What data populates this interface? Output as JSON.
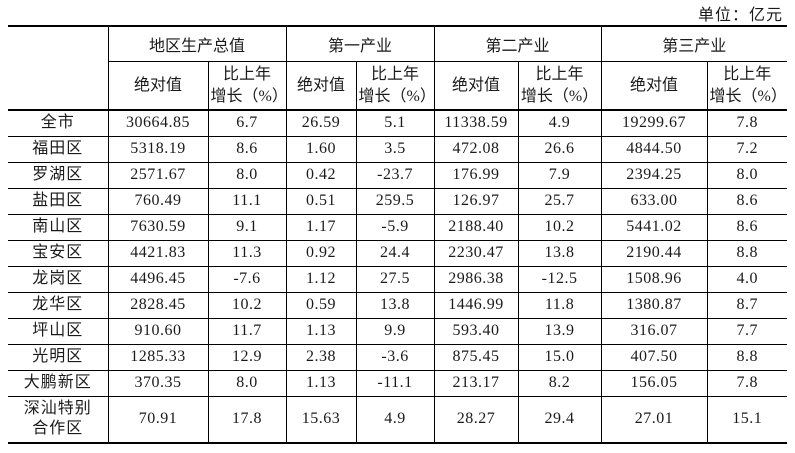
{
  "unit_label": "单位：亿元",
  "table": {
    "col_groups": [
      {
        "label": "地区生产总值"
      },
      {
        "label": "第一产业"
      },
      {
        "label": "第二产业"
      },
      {
        "label": "第三产业"
      }
    ],
    "sub_headers": {
      "abs": "绝对值",
      "growth": "比上年\n增长（%）"
    },
    "rows": [
      {
        "region": "全市",
        "values": [
          "30664.85",
          "6.7",
          "26.59",
          "5.1",
          "11338.59",
          "4.9",
          "19299.67",
          "7.8"
        ]
      },
      {
        "region": "福田区",
        "values": [
          "5318.19",
          "8.6",
          "1.60",
          "3.5",
          "472.08",
          "26.6",
          "4844.50",
          "7.2"
        ]
      },
      {
        "region": "罗湖区",
        "values": [
          "2571.67",
          "8.0",
          "0.42",
          "-23.7",
          "176.99",
          "7.9",
          "2394.25",
          "8.0"
        ]
      },
      {
        "region": "盐田区",
        "values": [
          "760.49",
          "11.1",
          "0.51",
          "259.5",
          "126.97",
          "25.7",
          "633.00",
          "8.6"
        ]
      },
      {
        "region": "南山区",
        "values": [
          "7630.59",
          "9.1",
          "1.17",
          "-5.9",
          "2188.40",
          "10.2",
          "5441.02",
          "8.6"
        ]
      },
      {
        "region": "宝安区",
        "values": [
          "4421.83",
          "11.3",
          "0.92",
          "24.4",
          "2230.47",
          "13.8",
          "2190.44",
          "8.8"
        ]
      },
      {
        "region": "龙岗区",
        "values": [
          "4496.45",
          "-7.6",
          "1.12",
          "27.5",
          "2986.38",
          "-12.5",
          "1508.96",
          "4.0"
        ]
      },
      {
        "region": "龙华区",
        "values": [
          "2828.45",
          "10.2",
          "0.59",
          "13.8",
          "1446.99",
          "11.8",
          "1380.87",
          "8.7"
        ]
      },
      {
        "region": "坪山区",
        "values": [
          "910.60",
          "11.7",
          "1.13",
          "9.9",
          "593.40",
          "13.9",
          "316.07",
          "7.7"
        ]
      },
      {
        "region": "光明区",
        "values": [
          "1285.33",
          "12.9",
          "2.38",
          "-3.6",
          "875.45",
          "15.0",
          "407.50",
          "8.8"
        ]
      },
      {
        "region": "大鹏新区",
        "values": [
          "370.35",
          "8.0",
          "1.13",
          "-11.1",
          "213.17",
          "8.2",
          "156.05",
          "7.8"
        ]
      },
      {
        "region": "深汕特别\n合作区",
        "values": [
          "70.91",
          "17.8",
          "15.63",
          "4.9",
          "28.27",
          "29.4",
          "27.01",
          "15.1"
        ]
      }
    ]
  }
}
